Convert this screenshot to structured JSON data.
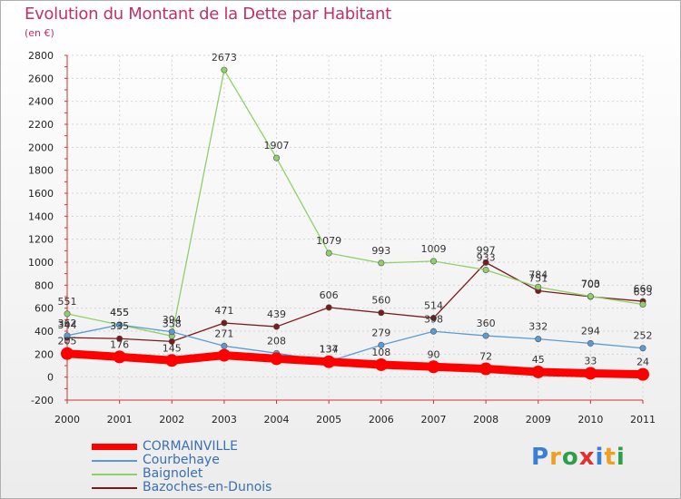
{
  "chart_data": {
    "type": "line",
    "title": "Evolution du Montant de la Dette par Habitant",
    "unit": "(en €)",
    "x": [
      "2000",
      "2001",
      "2002",
      "2003",
      "2004",
      "2005",
      "2006",
      "2007",
      "2008",
      "2009",
      "2010",
      "2011"
    ],
    "ylim": [
      -200,
      2800
    ],
    "yticks": [
      -200,
      0,
      200,
      400,
      600,
      800,
      1000,
      1200,
      1400,
      1600,
      1800,
      2000,
      2200,
      2400,
      2600,
      2800
    ],
    "grid": true,
    "legend_position": "bottom-left",
    "series": [
      {
        "name": "CORMAINVILLE",
        "color": "#ff0000",
        "values": [
          205,
          176,
          145,
          190,
          160,
          134,
          108,
          90,
          72,
          45,
          33,
          24
        ]
      },
      {
        "name": "Courbehaye",
        "color": "#5b9bd5",
        "values": [
          362,
          455,
          394,
          271,
          208,
          137,
          279,
          398,
          360,
          332,
          294,
          252
        ]
      },
      {
        "name": "Baignolet",
        "color": "#8fd06a",
        "values": [
          551,
          455,
          358,
          2673,
          1907,
          1079,
          993,
          1009,
          933,
          784,
          703,
          633
        ]
      },
      {
        "name": "Bazoches-en-Dunois",
        "color": "#7a1a1a",
        "values": [
          344,
          335,
          310,
          471,
          439,
          606,
          560,
          514,
          997,
          751,
          700,
          660
        ]
      }
    ],
    "data_labels": {
      "CORMAINVILLE": [
        "205",
        "176",
        "145",
        "",
        "",
        "134",
        "108",
        "90",
        "72",
        "45",
        "33",
        "24"
      ],
      "Courbehaye": [
        "362",
        "455",
        "394",
        "271",
        "208",
        "137",
        "279",
        "398",
        "360",
        "332",
        "294",
        "252"
      ],
      "Baignolet": [
        "551",
        "455",
        "358",
        "2673",
        "1907",
        "1079",
        "993",
        "1009",
        "933",
        "784",
        "703",
        "633"
      ],
      "Bazoches-en-Dunois": [
        "344",
        "335",
        "",
        "471",
        "439",
        "606",
        "560",
        "514",
        "997",
        "751",
        "700",
        "660"
      ]
    }
  },
  "branding": {
    "logo_text": "Proxiti",
    "logo_letters": [
      "P",
      "r",
      "o",
      "x",
      "i",
      "t",
      "i"
    ]
  }
}
